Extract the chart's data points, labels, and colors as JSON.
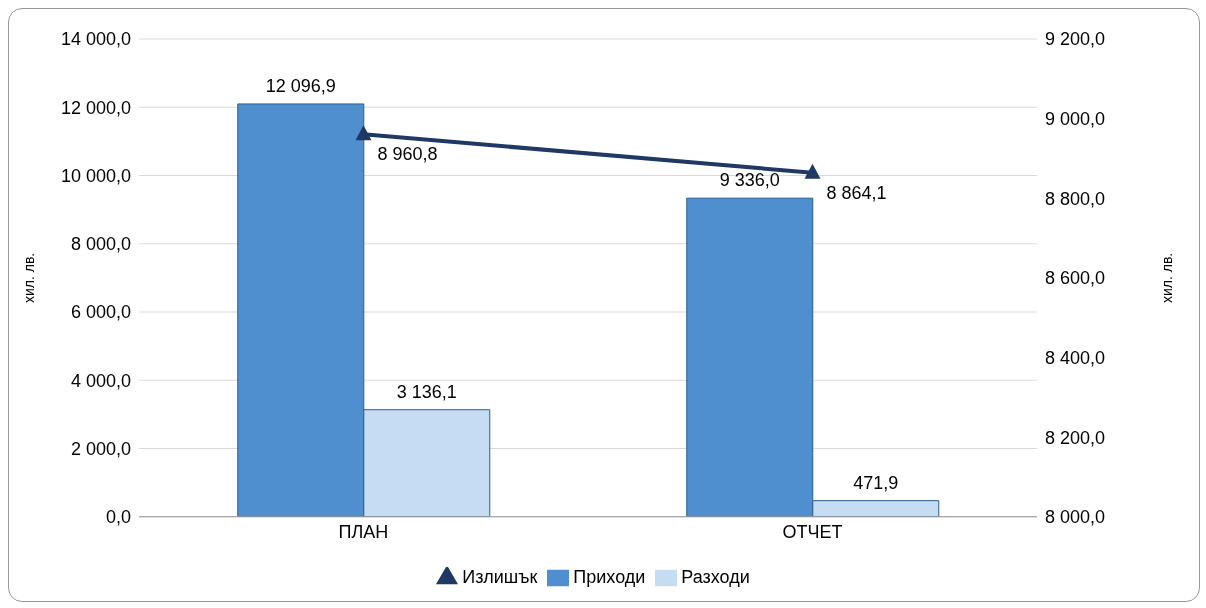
{
  "chart_data": {
    "type": "bar",
    "categories": [
      "ПЛАН",
      "ОТЧЕТ"
    ],
    "series": [
      {
        "name": "Приходи",
        "color": "#4f8fcf",
        "values": [
          12096.9,
          9336.0
        ],
        "value_labels": [
          "12 096,9",
          "9 336,0"
        ]
      },
      {
        "name": "Разходи",
        "color": "#c5dcf2",
        "values": [
          3136.1,
          471.9
        ],
        "value_labels": [
          "3 136,1",
          "471,9"
        ]
      },
      {
        "name": "Излишък",
        "type": "line",
        "axis": "y2",
        "color": "#1f3864",
        "values": [
          8960.8,
          8864.1
        ],
        "value_labels": [
          "8 960,8",
          "8 864,1"
        ]
      }
    ],
    "ylabel": "хил. лв.",
    "y2label": "хил. лв.",
    "ylim": [
      0,
      14000
    ],
    "yticks": [
      {
        "value": 0,
        "label": "0,0"
      },
      {
        "value": 2000,
        "label": "2 000,0"
      },
      {
        "value": 4000,
        "label": "4 000,0"
      },
      {
        "value": 6000,
        "label": "6 000,0"
      },
      {
        "value": 8000,
        "label": "8 000,0"
      },
      {
        "value": 10000,
        "label": "10 000,0"
      },
      {
        "value": 12000,
        "label": "12 000,0"
      },
      {
        "value": 14000,
        "label": "14 000,0"
      }
    ],
    "y2lim": [
      8000,
      9200
    ],
    "y2ticks": [
      {
        "value": 8000,
        "label": "8 000,0"
      },
      {
        "value": 8200,
        "label": "8 200,0"
      },
      {
        "value": 8400,
        "label": "8 400,0"
      },
      {
        "value": 8600,
        "label": "8 600,0"
      },
      {
        "value": 8800,
        "label": "8 800,0"
      },
      {
        "value": 9000,
        "label": "9 000,0"
      },
      {
        "value": 9200,
        "label": "9 200,0"
      }
    ],
    "grid": "y",
    "legend": "bottom",
    "marker": "triangle",
    "line_style": "solid"
  }
}
